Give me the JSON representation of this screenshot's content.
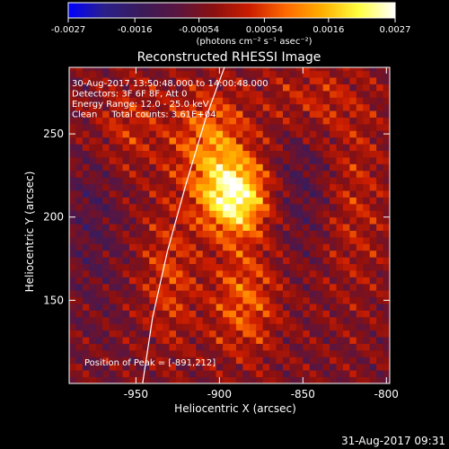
{
  "colorbar": {
    "tick_labels": [
      "-0.0027",
      "-0.0016",
      "-0.00054",
      "0.00054",
      "0.0016",
      "0.0027"
    ],
    "units_label": "(photons cm⁻² s⁻¹ asec⁻²)",
    "range": [
      -0.0027,
      0.0027
    ],
    "stops": [
      "#0000ff",
      "#2a1f8a",
      "#3a1b5a",
      "#5a1540",
      "#8a1010",
      "#cc1d00",
      "#ff6a00",
      "#ffb000",
      "#ffff40",
      "#ffffff"
    ]
  },
  "chart_data": {
    "type": "heatmap",
    "title": "Reconstructed RHESSI Image",
    "xlabel": "Heliocentric X (arcsec)",
    "ylabel": "Heliocentric Y (arcsec)",
    "xlim": [
      -990,
      -798
    ],
    "ylim": [
      100,
      290
    ],
    "x_ticks": [
      {
        "value": -950,
        "label": "-950"
      },
      {
        "value": -900,
        "label": "-900"
      },
      {
        "value": -850,
        "label": "-850"
      },
      {
        "value": -800,
        "label": "-800"
      }
    ],
    "y_ticks": [
      {
        "value": 150,
        "label": "150"
      },
      {
        "value": 200,
        "label": "200"
      },
      {
        "value": 250,
        "label": "250"
      }
    ],
    "peak": {
      "x": -891,
      "y": 212
    },
    "limb_points": [
      [
        -946,
        100
      ],
      [
        -940,
        140
      ],
      [
        -931,
        180
      ],
      [
        -920,
        220
      ],
      [
        -908,
        260
      ],
      [
        -897,
        290
      ]
    ],
    "annotations": [
      "30-Aug-2017 13:50:48.000 to 14:00:48.000",
      "Detectors: 3F 6F 8F, Att 0",
      "Energy Range: 12.0 - 25.0 keV",
      "Clean     Total counts: 3.61E+04"
    ],
    "peak_label": "Position of Peak = [-891,212]"
  },
  "timestamp": "31-Aug-2017 09:31"
}
